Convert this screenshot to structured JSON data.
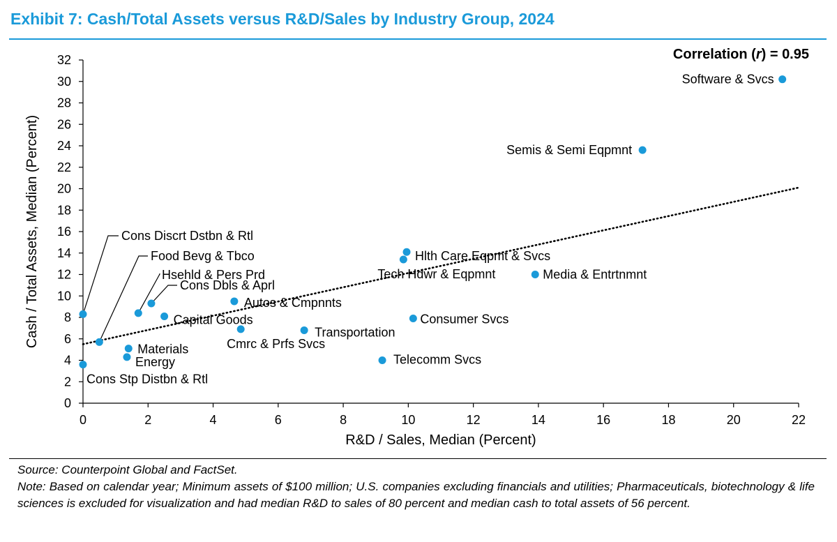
{
  "header": {
    "title": "Exhibit 7: Cash/Total Assets versus R&D/Sales by Industry Group, 2024"
  },
  "footnotes": {
    "source": "Source: Counterpoint Global and FactSet.",
    "note": "Note: Based on calendar year; Minimum assets of $100 million; U.S. companies excluding financials and utilities; Pharmaceuticals, biotechnology & life sciences is excluded for visualization and had median R&D to sales of 80 percent and median cash to total assets of 56 percent."
  },
  "colors": {
    "title": "#1a9ad9",
    "point": "#1a9ad9",
    "axis": "#000000"
  },
  "chart_data": {
    "type": "scatter",
    "xlabel": "R&D / Sales, Median (Percent)",
    "ylabel": "Cash / Total Assets, Median (Percent)",
    "xlim": [
      0,
      22
    ],
    "ylim": [
      0,
      32
    ],
    "x_ticks": [
      0,
      2,
      4,
      6,
      8,
      10,
      12,
      14,
      16,
      18,
      20,
      22
    ],
    "y_ticks": [
      0,
      2,
      4,
      6,
      8,
      10,
      12,
      14,
      16,
      18,
      20,
      22,
      24,
      26,
      28,
      30,
      32
    ],
    "grid": false,
    "annotation": {
      "prefix": "Correlation (",
      "symbol": "r",
      "suffix": ") = 0.95"
    },
    "trendline": {
      "style": "dotted",
      "x": [
        0,
        22
      ],
      "y": [
        5.5,
        20.1
      ]
    },
    "points": [
      {
        "label": "Software & Svcs",
        "x": 21.5,
        "y": 30.2
      },
      {
        "label": "Semis & Semi Eqpmnt",
        "x": 17.2,
        "y": 23.6
      },
      {
        "label": "Media & Entrtnmnt",
        "x": 13.9,
        "y": 12.0
      },
      {
        "label": "Hlth Care Eqpmt & Svcs",
        "x": 9.95,
        "y": 14.1
      },
      {
        "label": "Tech Hdwr & Eqpmnt",
        "x": 9.85,
        "y": 13.4
      },
      {
        "label": "Consumer Svcs",
        "x": 10.15,
        "y": 7.9
      },
      {
        "label": "Telecomm Svcs",
        "x": 9.2,
        "y": 4.0
      },
      {
        "label": "Transportation",
        "x": 6.8,
        "y": 6.8
      },
      {
        "label": "Cmrc & Prfs Svcs",
        "x": 4.85,
        "y": 6.9
      },
      {
        "label": "Autos & Cmpnnts",
        "x": 4.65,
        "y": 9.5
      },
      {
        "label": "Capital Goods",
        "x": 2.5,
        "y": 8.1
      },
      {
        "label": "Cons Dbls & Aprl",
        "x": 2.1,
        "y": 9.3
      },
      {
        "label": "Hsehld & Pers Prd",
        "x": 1.7,
        "y": 8.4
      },
      {
        "label": "Food Bevg & Tbco",
        "x": 0.5,
        "y": 5.7
      },
      {
        "label": "Cons Discrt Dstbn & Rtl",
        "x": 0.0,
        "y": 8.3
      },
      {
        "label": "Cons Stp Distbn & Rtl",
        "x": 0.0,
        "y": 3.6
      },
      {
        "label": "Materials",
        "x": 1.4,
        "y": 5.1
      },
      {
        "label": "Energy",
        "x": 1.35,
        "y": 4.3
      }
    ]
  }
}
